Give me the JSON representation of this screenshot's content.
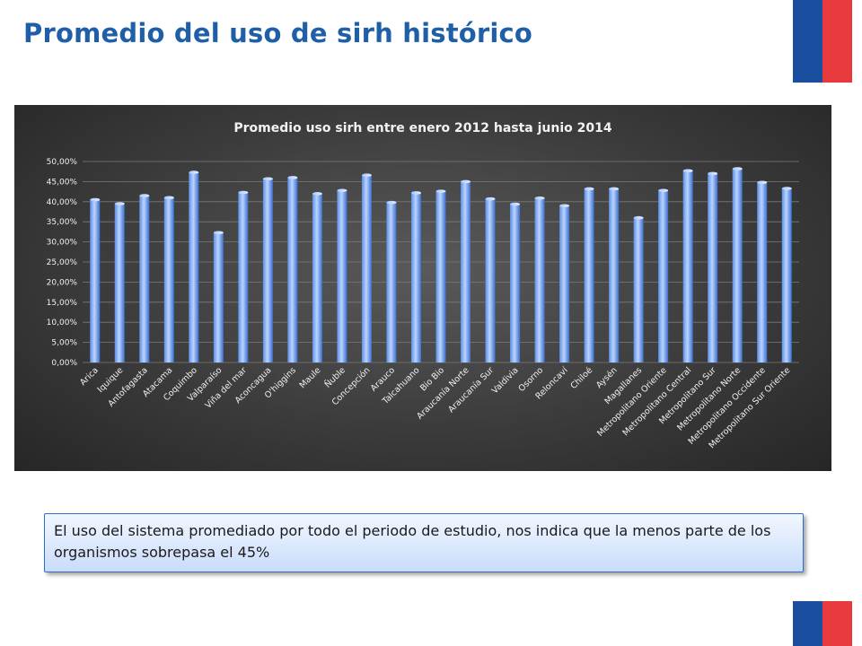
{
  "page": {
    "title": "Promedio del uso de sirh histórico",
    "note": "El uso del sistema promediado por todo el periodo de estudio, nos indica que la menos parte de los organismos sobrepasa el 45%"
  },
  "colors": {
    "title": "#1f5fa8",
    "flag_blue": "#1a4fa0",
    "flag_red": "#e8393d",
    "bar_light": "#bcd4ff",
    "bar_dark": "#3a6fd0",
    "chart_bg": "#3c3c3c"
  },
  "chart_data": {
    "type": "bar",
    "title": "Promedio uso sirh entre enero 2012 hasta junio 2014",
    "xlabel": "",
    "ylabel": "",
    "ylim": [
      0,
      50
    ],
    "yticks": [
      "0,00%",
      "5,00%",
      "10,00%",
      "15,00%",
      "20,00%",
      "25,00%",
      "30,00%",
      "35,00%",
      "40,00%",
      "45,00%",
      "50,00%"
    ],
    "grid": true,
    "legend": "none",
    "categories": [
      "Arica",
      "Iquique",
      "Antofagasta",
      "Atacama",
      "Coquimbo",
      "Valparaíso",
      "Viña del mar",
      "Aconcagua",
      "O'higgins",
      "Maule",
      "Ñuble",
      "Concepción",
      "Arauco",
      "Talcahuano",
      "Bio Bio",
      "Araucanía Norte",
      "Araucanía Sur",
      "Valdivia",
      "Osorno",
      "Reloncaví",
      "Chiloé",
      "Aysén",
      "Magallanes",
      "Metropolitano Oriente",
      "Metropolitano Central",
      "Metropolitano Sur",
      "Metropolitano Norte",
      "Metropolitano Occidente",
      "Metropolitano Sur Oriente"
    ],
    "values": [
      40.5,
      39.5,
      41.5,
      41.0,
      47.3,
      32.3,
      42.3,
      45.7,
      46.0,
      42.0,
      42.8,
      46.6,
      39.8,
      42.2,
      42.6,
      45.0,
      40.7,
      39.4,
      40.9,
      39.0,
      43.2,
      43.2,
      36.0,
      42.8,
      47.7,
      47.0,
      48.2,
      44.8,
      43.3
    ]
  }
}
